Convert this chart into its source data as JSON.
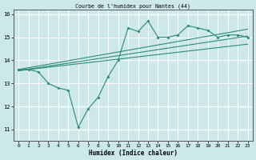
{
  "title": "Courbe de l'humidex pour Nantes (44)",
  "xlabel": "Humidex (Indice chaleur)",
  "bg_color": "#cce8e8",
  "grid_color": "#ffffff",
  "line_color": "#2d8a78",
  "xlim": [
    -0.5,
    23.5
  ],
  "ylim": [
    10.5,
    16.2
  ],
  "yticks": [
    11,
    12,
    13,
    14,
    15,
    16
  ],
  "xticks": [
    0,
    1,
    2,
    3,
    4,
    5,
    6,
    7,
    8,
    9,
    10,
    11,
    12,
    13,
    14,
    15,
    16,
    17,
    18,
    19,
    20,
    21,
    22,
    23
  ],
  "line1_x": [
    0,
    1,
    2,
    3,
    4,
    5,
    6,
    7,
    8,
    9,
    10,
    11,
    12,
    13,
    14,
    15,
    16,
    17,
    18,
    19,
    20,
    21,
    22,
    23
  ],
  "line1_y": [
    13.6,
    13.6,
    13.5,
    13.0,
    12.8,
    12.7,
    11.1,
    11.9,
    12.4,
    13.3,
    14.0,
    15.4,
    15.25,
    15.7,
    15.0,
    15.0,
    15.1,
    15.5,
    15.4,
    15.3,
    15.0,
    15.1,
    15.1,
    15.0
  ],
  "line2_x": [
    0,
    23
  ],
  "line2_y": [
    13.55,
    15.05
  ],
  "line3_x": [
    0,
    23
  ],
  "line3_y": [
    13.6,
    15.35
  ],
  "line4_x": [
    0,
    23
  ],
  "line4_y": [
    13.55,
    14.7
  ]
}
